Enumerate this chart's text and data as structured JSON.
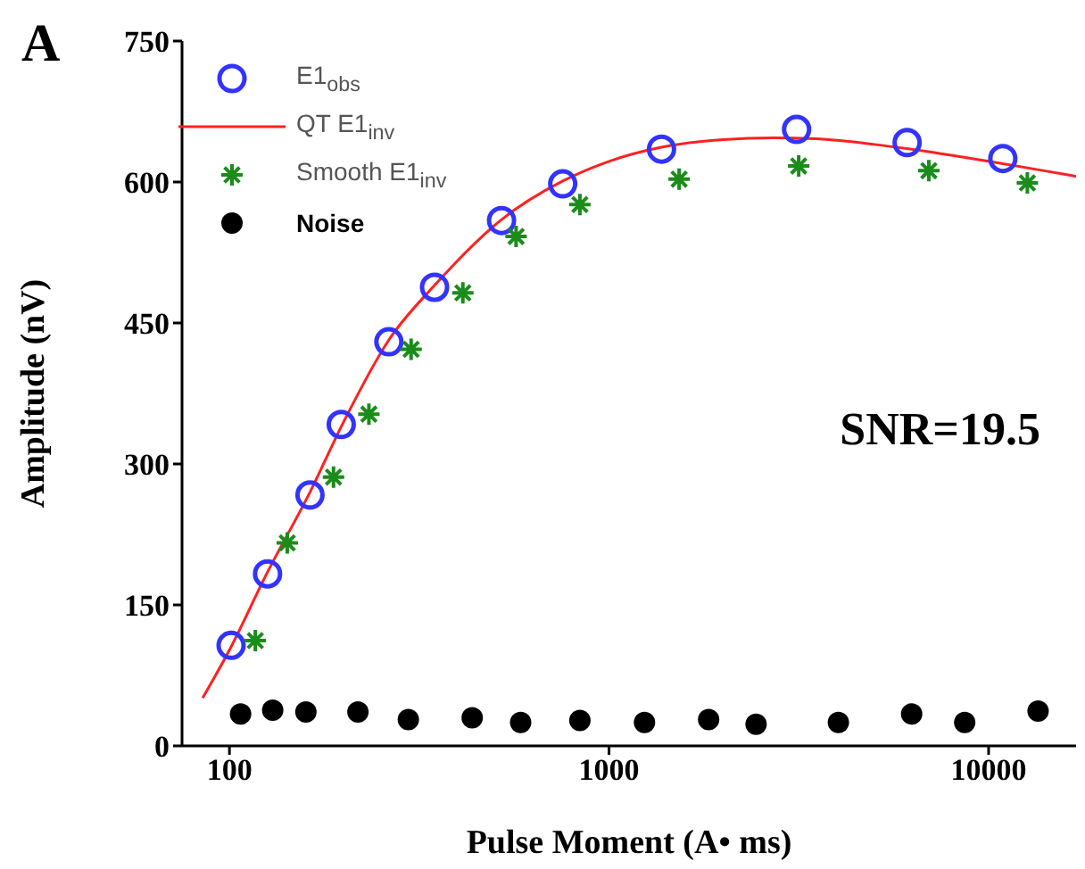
{
  "chart_data": {
    "type": "scatter",
    "xlabel": "Pulse Moment (A• ms)",
    "ylabel": "Amplitude (nV)",
    "log": "x",
    "xlim": [
      75,
      17000
    ],
    "xticks": [
      100,
      1000,
      10000
    ],
    "ylim": [
      0,
      750
    ],
    "yticks": [
      0,
      150,
      300,
      450,
      600,
      750
    ],
    "grid": false,
    "legend": "top left",
    "annotations": [
      "A",
      "SNR=19.5"
    ],
    "series": [
      {
        "name": "E1$_{obs}$",
        "marker": "circle",
        "color": "#3333ff",
        "x": [
          101,
          126,
          163,
          197,
          263,
          347,
          521,
          755,
          1375,
          3120,
          6100,
          10900
        ],
        "values": [
          107,
          183,
          267,
          342,
          430,
          488,
          559,
          598,
          635,
          656,
          642,
          625
        ]
      },
      {
        "name": "QT E1$_{inv}$",
        "type": "line",
        "marker": "none",
        "line_style": "solid",
        "color": "#ff2020",
        "x": [
          85,
          100,
          126,
          163,
          200,
          263,
          347,
          521,
          755,
          1000,
          1375,
          2000,
          2700,
          3500,
          5000,
          7000,
          10000,
          14000,
          17000
        ],
        "values": [
          51,
          102,
          185,
          270,
          345,
          432,
          490,
          560,
          601,
          622,
          637,
          645,
          647,
          646,
          640,
          632,
          622,
          612,
          606
        ]
      },
      {
        "name": "Smooth E1$_{inv}$",
        "marker": "cross",
        "color": "#1a8c1a",
        "x": [
          117,
          142,
          188,
          233,
          301,
          412,
          569,
          838,
          1530,
          3160,
          6960,
          12650
        ],
        "values": [
          112,
          216,
          286,
          353,
          422,
          482,
          542,
          576,
          603,
          617,
          612,
          599
        ]
      },
      {
        "name": "Noise",
        "marker": "circle",
        "color": "#000000",
        "x": [
          107,
          130,
          159,
          218,
          296,
          436,
          585,
          838,
          1240,
          1830,
          2440,
          4020,
          6270,
          8650,
          13500
        ],
        "values": [
          34,
          38,
          36,
          36,
          28,
          30,
          25,
          27,
          25,
          28,
          23,
          25,
          34,
          25,
          37
        ]
      }
    ]
  }
}
